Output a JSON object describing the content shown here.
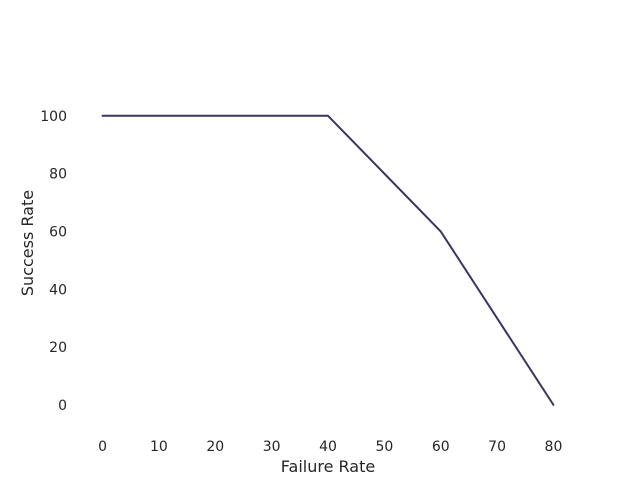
{
  "chart_data": {
    "type": "line",
    "title": "",
    "xlabel": "Failure Rate",
    "ylabel": "Success Rate",
    "x": [
      0,
      10,
      20,
      30,
      40,
      50,
      60,
      70,
      80
    ],
    "series": [
      {
        "values": [
          100,
          100,
          100,
          100,
          100,
          80,
          60,
          30,
          0
        ],
        "color": "#3b3561"
      }
    ],
    "xticks": [
      0,
      10,
      20,
      30,
      40,
      50,
      60,
      70,
      80
    ],
    "yticks": [
      0,
      20,
      40,
      60,
      80,
      100
    ],
    "xlim": [
      -4,
      84
    ],
    "ylim": [
      -8,
      120
    ],
    "grid": false,
    "legend": "none",
    "background": "#ffffff",
    "text_color": "#262626"
  }
}
